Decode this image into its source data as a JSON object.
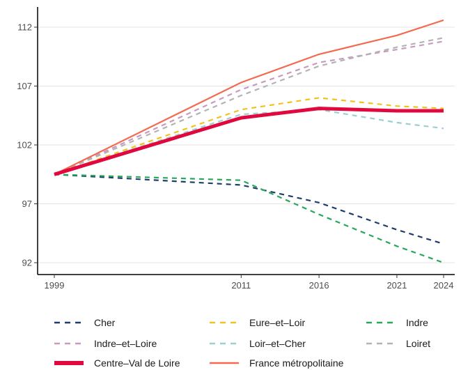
{
  "chart_data": {
    "type": "line",
    "title": "",
    "xlabel": "",
    "ylabel": "",
    "x": [
      1999,
      2011,
      2016,
      2021,
      2024
    ],
    "x_ticks": [
      "1999",
      "2011",
      "2016",
      "2021",
      "2024"
    ],
    "y_ticks": [
      "92",
      "97",
      "102",
      "107",
      "112"
    ],
    "xlim": [
      1999,
      2024
    ],
    "ylim": [
      92,
      112
    ],
    "grid": "horizontal major gridlines",
    "legend_position": "bottom",
    "series": [
      {
        "name": "Cher",
        "color": "#1f3d6b",
        "dash": true,
        "values": [
          99.5,
          98.6,
          97.1,
          94.8,
          93.6
        ]
      },
      {
        "name": "Eure–et–Loir",
        "color": "#f2c21c",
        "dash": true,
        "values": [
          99.5,
          105.0,
          106.0,
          105.3,
          105.1
        ]
      },
      {
        "name": "Indre",
        "color": "#27a85a",
        "dash": true,
        "values": [
          99.5,
          99.0,
          96.1,
          93.4,
          92.0
        ]
      },
      {
        "name": "Indre–et–Loire",
        "color": "#c99ac0",
        "dash": true,
        "values": [
          99.5,
          106.7,
          109.0,
          110.1,
          110.8
        ]
      },
      {
        "name": "Loir–et–Cher",
        "color": "#9ccfd0",
        "dash": true,
        "values": [
          99.5,
          104.6,
          105.0,
          103.9,
          103.4
        ]
      },
      {
        "name": "Loiret",
        "color": "#b3b3b3",
        "dash": true,
        "values": [
          99.5,
          106.2,
          108.7,
          110.3,
          111.1
        ]
      },
      {
        "name": "Centre–Val de Loire",
        "color": "#e0083f",
        "dash": false,
        "thick": true,
        "values": [
          99.5,
          104.3,
          105.1,
          104.9,
          104.9
        ]
      },
      {
        "name": "France métropolitaine",
        "color": "#f26a4f",
        "dash": false,
        "thick": false,
        "values": [
          99.5,
          107.3,
          109.7,
          111.3,
          112.6
        ]
      }
    ]
  }
}
